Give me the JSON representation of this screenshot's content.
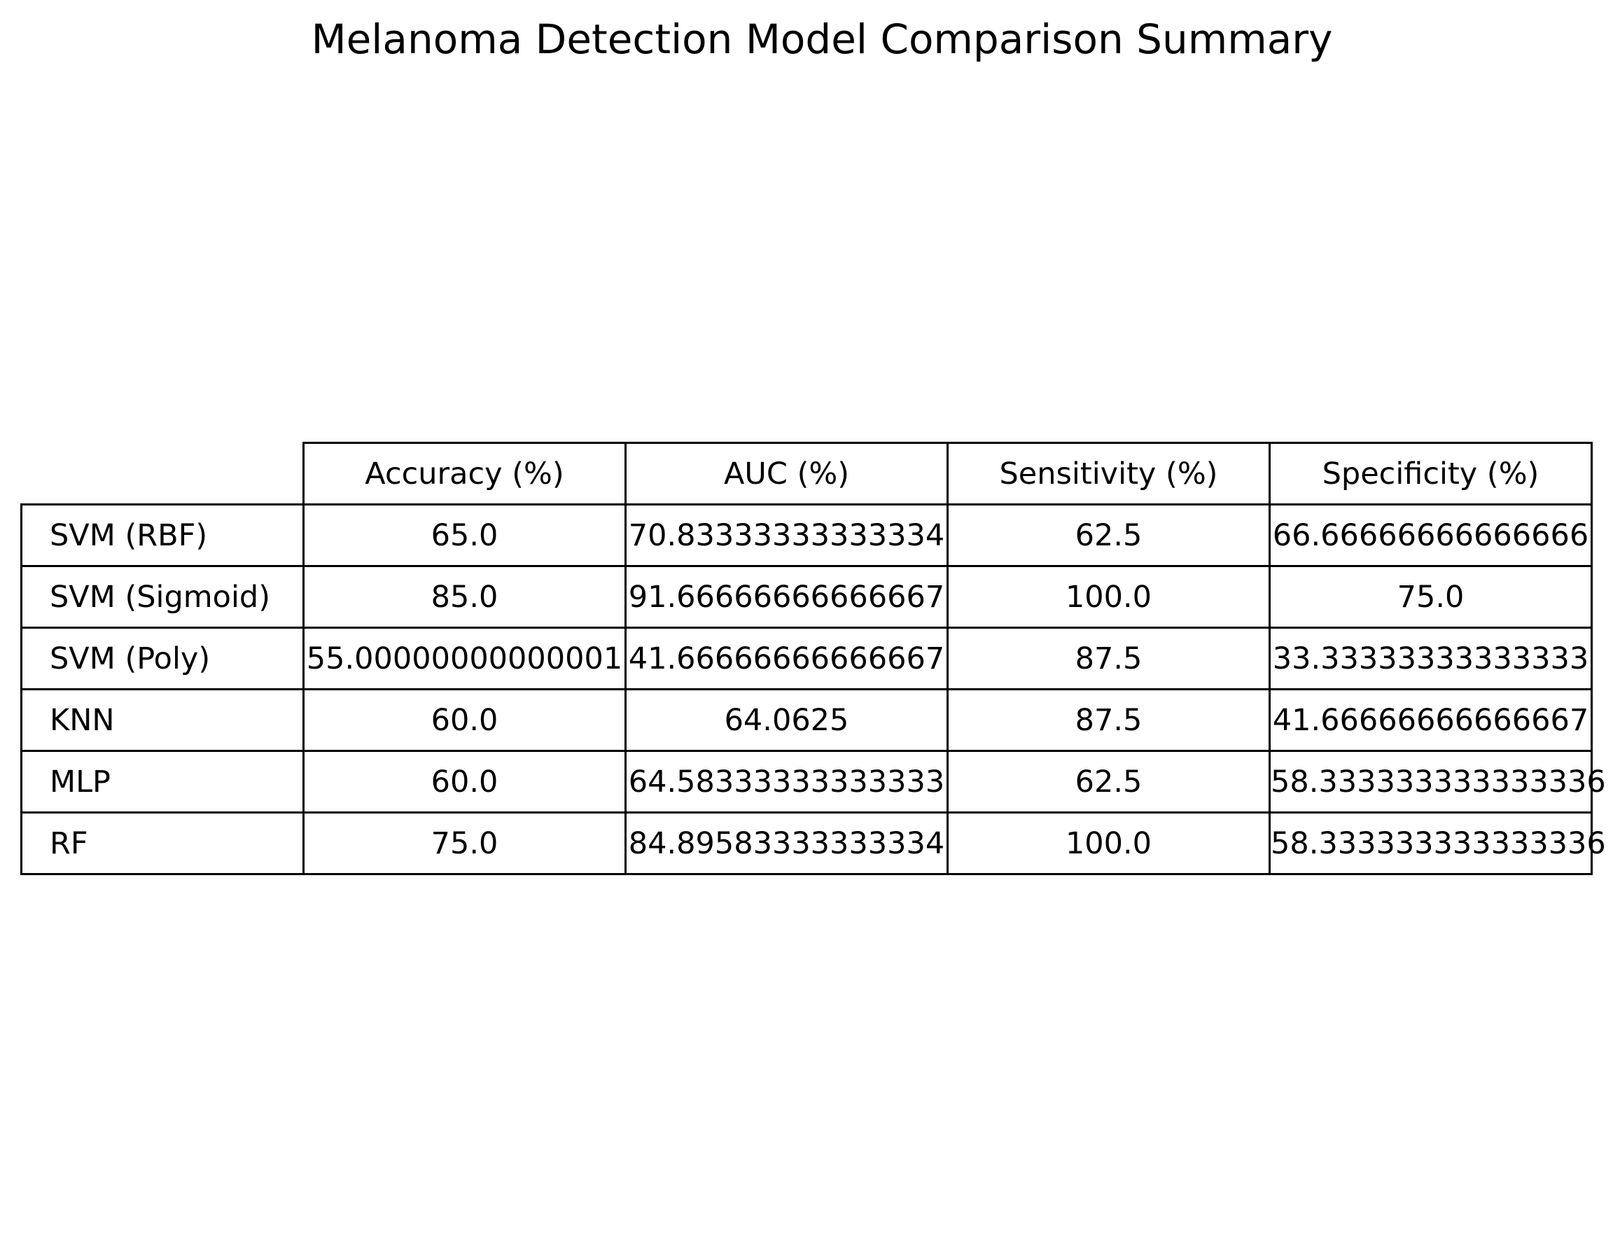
{
  "chart_data": {
    "type": "table",
    "title": "Melanoma Detection Model Comparison Summary",
    "columns": [
      "Accuracy (%)",
      "AUC (%)",
      "Sensitivity (%)",
      "Specificity (%)"
    ],
    "rows": [
      {
        "label": "SVM (RBF)",
        "values": [
          "65.0",
          "70.83333333333334",
          "62.5",
          "66.66666666666666"
        ]
      },
      {
        "label": "SVM (Sigmoid)",
        "values": [
          "85.0",
          "91.66666666666667",
          "100.0",
          "75.0"
        ]
      },
      {
        "label": "SVM (Poly)",
        "values": [
          "55.00000000000001",
          "41.66666666666667",
          "87.5",
          "33.33333333333333"
        ]
      },
      {
        "label": "KNN",
        "values": [
          "60.0",
          "64.0625",
          "87.5",
          "41.66666666666667"
        ]
      },
      {
        "label": "MLP",
        "values": [
          "60.0",
          "64.58333333333333",
          "62.5",
          "58.333333333333336"
        ]
      },
      {
        "label": "RF",
        "values": [
          "75.0",
          "84.89583333333334",
          "100.0",
          "58.333333333333336"
        ]
      }
    ]
  }
}
